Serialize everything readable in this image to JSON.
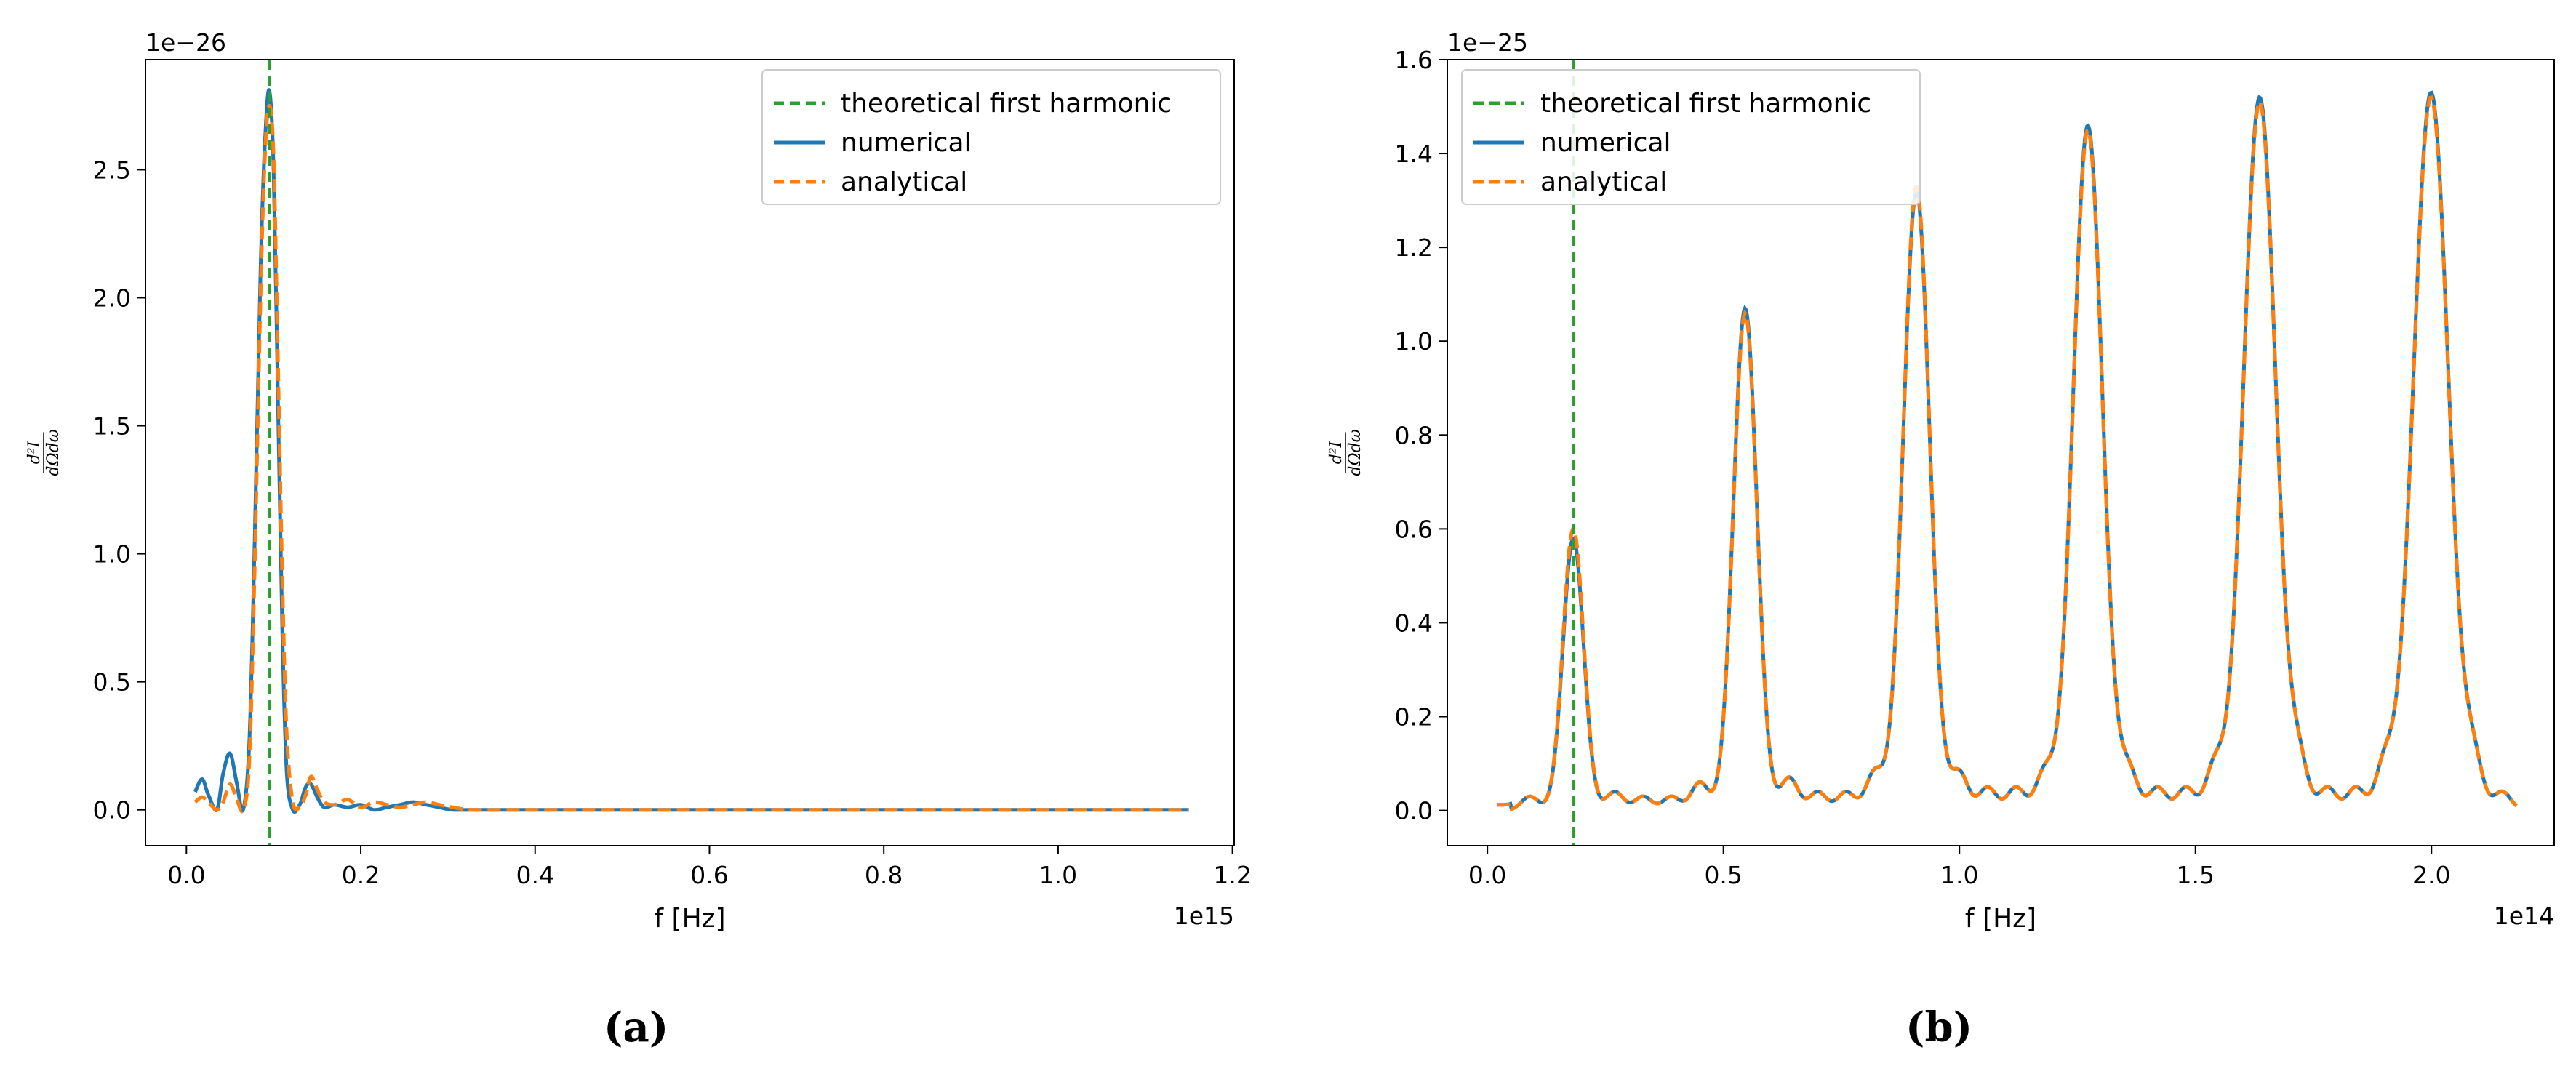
{
  "charts": [
    {
      "caption": "(a)",
      "y_offset": "1e−26",
      "x_offset": "1e15",
      "xlabel": "f [Hz]",
      "ylabel_num": "d²I",
      "ylabel_den": "dΩdω"
    },
    {
      "caption": "(b)",
      "y_offset": "1e−25",
      "x_offset": "1e14",
      "xlabel": "f [Hz]",
      "ylabel_num": "d²I",
      "ylabel_den": "dΩdω"
    }
  ],
  "colors": {
    "theoretical": "#2ca02c",
    "numerical": "#1f77b4",
    "analytical": "#ff7f0e"
  },
  "chart_data": [
    {
      "type": "line",
      "xlabel": "f [Hz]",
      "ylabel": "d²I/dΩdω",
      "x_scale": 1000000000000000.0,
      "y_scale": 1e-26,
      "xlim": [
        -0.047,
        1.202
      ],
      "ylim": [
        -0.14,
        2.93
      ],
      "xticks": [
        0.0,
        0.2,
        0.4,
        0.6,
        0.8,
        1.0,
        1.2
      ],
      "yticks": [
        0.0,
        0.5,
        1.0,
        1.5,
        2.0,
        2.5
      ],
      "legend_position": "top-right",
      "vline": {
        "name": "theoretical first harmonic",
        "x": 0.095
      },
      "series": [
        {
          "name": "numerical",
          "style": "solid",
          "x": [
            0.01,
            0.018,
            0.025,
            0.035,
            0.042,
            0.05,
            0.058,
            0.065,
            0.072,
            0.078,
            0.085,
            0.09,
            0.095,
            0.1,
            0.105,
            0.11,
            0.115,
            0.122,
            0.13,
            0.137,
            0.143,
            0.15,
            0.158,
            0.17,
            0.185,
            0.2,
            0.215,
            0.23,
            0.245,
            0.26,
            0.275,
            0.29,
            0.305,
            0.33,
            0.4,
            0.6,
            0.8,
            1.0,
            1.15
          ],
          "y": [
            0.07,
            0.12,
            0.06,
            0.0,
            0.14,
            0.22,
            0.1,
            0.0,
            0.25,
            1.0,
            2.1,
            2.6,
            2.81,
            2.5,
            1.6,
            0.7,
            0.15,
            0.0,
            0.02,
            0.09,
            0.1,
            0.05,
            0.01,
            0.02,
            0.01,
            0.02,
            0.0,
            0.01,
            0.02,
            0.03,
            0.02,
            0.01,
            0.0,
            0.0,
            0.0,
            0.0,
            0.0,
            0.0,
            0.0
          ]
        },
        {
          "name": "analytical",
          "style": "dashed",
          "x": [
            0.01,
            0.018,
            0.025,
            0.035,
            0.042,
            0.05,
            0.058,
            0.065,
            0.072,
            0.078,
            0.085,
            0.09,
            0.095,
            0.1,
            0.105,
            0.11,
            0.115,
            0.122,
            0.13,
            0.137,
            0.143,
            0.15,
            0.158,
            0.17,
            0.185,
            0.2,
            0.215,
            0.23,
            0.245,
            0.26,
            0.275,
            0.29,
            0.305,
            0.33,
            0.4,
            0.6,
            0.8,
            1.0,
            1.15
          ],
          "y": [
            0.03,
            0.05,
            0.03,
            0.0,
            0.03,
            0.1,
            0.04,
            0.0,
            0.18,
            0.9,
            2.0,
            2.55,
            2.75,
            2.55,
            1.75,
            0.9,
            0.3,
            0.03,
            0.01,
            0.06,
            0.13,
            0.08,
            0.03,
            0.02,
            0.04,
            0.01,
            0.03,
            0.02,
            0.01,
            0.02,
            0.03,
            0.02,
            0.01,
            0.0,
            0.0,
            0.0,
            0.0,
            0.0,
            0.0
          ]
        }
      ]
    },
    {
      "type": "line",
      "xlabel": "f [Hz]",
      "ylabel": "d²I/dΩdω",
      "x_scale": 100000000000000.0,
      "y_scale": 1e-25,
      "xlim": [
        -0.085,
        2.26
      ],
      "ylim": [
        -0.075,
        1.6
      ],
      "xticks": [
        0.0,
        0.5,
        1.0,
        1.5,
        2.0
      ],
      "yticks": [
        0.0,
        0.2,
        0.4,
        0.6,
        0.8,
        1.0,
        1.2,
        1.4,
        1.6
      ],
      "legend_position": "top-left",
      "vline": {
        "name": "theoretical first harmonic",
        "x": 0.182
      },
      "peaks": [
        {
          "name": "numerical",
          "x": [
            0.182,
            0.546,
            0.909,
            1.272,
            1.636,
            1.999
          ],
          "y": [
            0.58,
            1.07,
            1.32,
            1.46,
            1.52,
            1.53
          ]
        },
        {
          "name": "analytical",
          "x": [
            0.182,
            0.546,
            0.909,
            1.272,
            1.636,
            1.999
          ],
          "y": [
            0.6,
            1.06,
            1.33,
            1.45,
            1.51,
            1.52
          ]
        }
      ],
      "background_bumps": {
        "x": [
          0.09,
          0.27,
          0.33,
          0.39,
          0.45,
          0.64,
          0.7,
          0.76,
          0.82,
          1.0,
          1.06,
          1.12,
          1.18,
          1.36,
          1.42,
          1.48,
          1.54,
          1.72,
          1.78,
          1.84,
          1.9,
          2.09,
          2.15
        ],
        "y": [
          0.03,
          0.04,
          0.03,
          0.03,
          0.06,
          0.07,
          0.04,
          0.04,
          0.08,
          0.08,
          0.05,
          0.05,
          0.08,
          0.08,
          0.05,
          0.05,
          0.09,
          0.09,
          0.05,
          0.05,
          0.09,
          0.09,
          0.04
        ]
      },
      "x_range": [
        0.02,
        2.18
      ]
    }
  ]
}
